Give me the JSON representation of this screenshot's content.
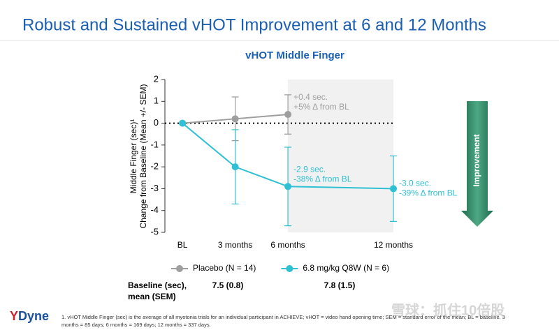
{
  "header": {
    "title": "Robust and Sustained vHOT Improvement at 6 and 12 Months"
  },
  "chart_data": {
    "type": "line",
    "title": "vHOT Middle Finger",
    "y_label": [
      "Middle Finger (sec)¹",
      "Change from Baseline (Mean +/- SEM)"
    ],
    "x": [
      0,
      3,
      6,
      12
    ],
    "xlim": [
      -1,
      12
    ],
    "xticks": [
      {
        "value": 0,
        "label": "BL"
      },
      {
        "value": 3,
        "label": "3 months"
      },
      {
        "value": 6,
        "label": "6 months"
      },
      {
        "value": 12,
        "label": "12 months"
      }
    ],
    "ylim": [
      -5,
      2
    ],
    "yticks": [
      -5,
      -4,
      -3,
      -2,
      -1,
      0,
      1,
      2
    ],
    "series": [
      {
        "name": "Placebo (N = 14)",
        "color": "#9e9e9e",
        "values": [
          0,
          0.2,
          0.4,
          null
        ],
        "errors": [
          null,
          1.0,
          0.9,
          null
        ],
        "annotations": [
          {
            "x": 6,
            "lines": [
              "+0.4 sec.",
              "+5% Δ from BL"
            ]
          }
        ]
      },
      {
        "name": "6.8 mg/kg Q8W (N = 6)",
        "color": "#2fc0d3",
        "values": [
          0,
          -2.0,
          -2.9,
          -3.0
        ],
        "errors": [
          null,
          1.7,
          1.8,
          1.5
        ],
        "annotations": [
          {
            "x": 6,
            "lines": [
              "-2.9 sec.",
              "-38% Δ from BL"
            ]
          },
          {
            "x": 12,
            "lines": [
              "-3.0 sec.",
              "-39% Δ from BL"
            ]
          }
        ]
      }
    ]
  },
  "baseline": {
    "label": [
      "Baseline (sec),",
      "mean (SEM)"
    ],
    "placebo": "7.5 (0.8)",
    "treated": "7.8 (1.5)"
  },
  "improvement": "Improvement",
  "logo": {
    "mark": "Y",
    "name": "Dyne"
  },
  "footnote": [
    "1. vHOT Middle Finger (sec) is the average of all myotonia trials for an individual participant in ACHIEVE; vHOT = video hand opening time; SEM = standard error of the mean; BL = baseline. 3",
    "months = 85 days; 6 months = 169 days; 12 months = 337 days."
  ],
  "watermark": "雪球：抓住10倍股"
}
